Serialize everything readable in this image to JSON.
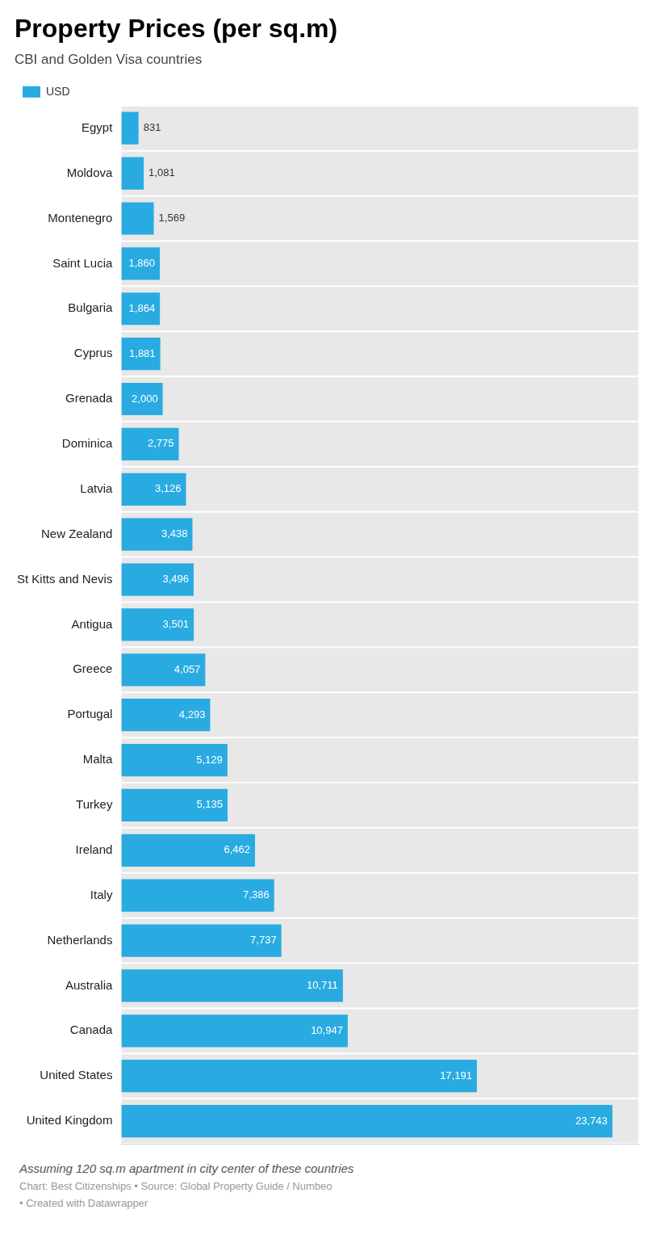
{
  "chart_data": {
    "type": "bar",
    "orientation": "horizontal",
    "title": "Property Prices (per sq.m)",
    "subtitle": "CBI and Golden Visa countries",
    "categories": [
      "Egypt",
      "Moldova",
      "Montenegro",
      "Saint Lucia",
      "Bulgaria",
      "Cyprus",
      "Grenada",
      "Dominica",
      "Latvia",
      "New Zealand",
      "St Kitts and Nevis",
      "Antigua",
      "Greece",
      "Portugal",
      "Malta",
      "Turkey",
      "Ireland",
      "Italy",
      "Netherlands",
      "Australia",
      "Canada",
      "United States",
      "United Kingdom"
    ],
    "series": [
      {
        "name": "USD",
        "color": "#29abe2",
        "values": [
          831,
          1081,
          1569,
          1860,
          1864,
          1881,
          2000,
          2775,
          3126,
          3438,
          3496,
          3501,
          4057,
          4293,
          5129,
          5135,
          6462,
          7386,
          7737,
          10711,
          10947,
          17191,
          23743
        ],
        "value_labels": [
          "831",
          "1,081",
          "1,569",
          "1,860",
          "1,864",
          "1,881",
          "2,000",
          "2,775",
          "3,126",
          "3,438",
          "3,496",
          "3,501",
          "4,057",
          "4,293",
          "5,129",
          "5,135",
          "6,462",
          "7,386",
          "7,737",
          "10,711",
          "10,947",
          "17,191",
          "23,743"
        ]
      }
    ],
    "xlim": [
      0,
      25000
    ],
    "tick_labels": "y",
    "grid": false,
    "legend": "top left",
    "data_labels": true,
    "annotations": [
      "Assuming 120 sq.m apartment in city center of these countries",
      "Chart: Best Citizenships • Source: Global Property Guide / Numbeo",
      "• Created with Datawrapper"
    ]
  }
}
